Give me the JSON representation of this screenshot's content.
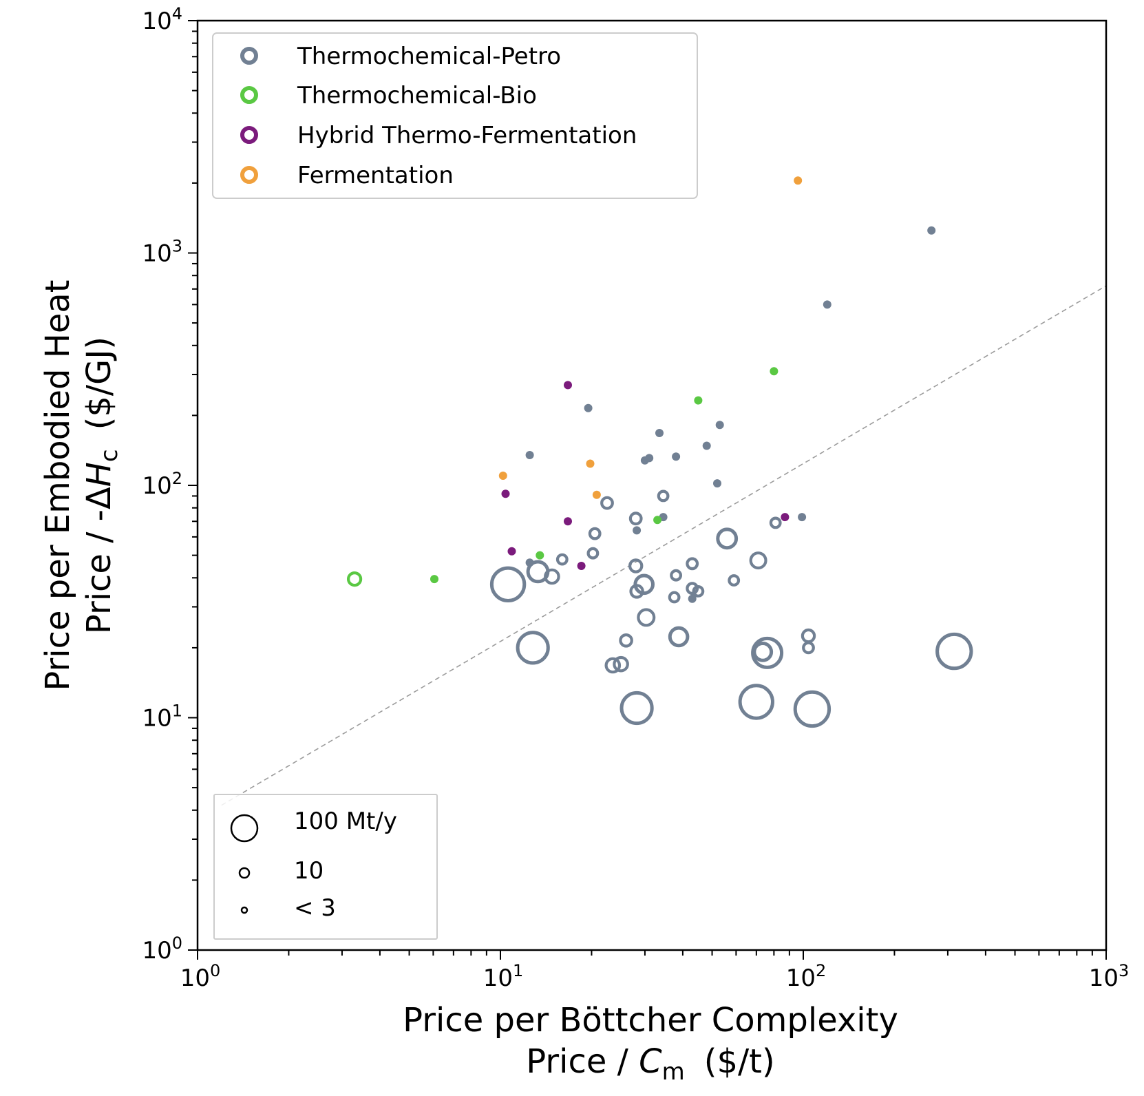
{
  "chart_data": {
    "type": "scatter",
    "xscale": "log",
    "yscale": "log",
    "xlim": [
      1,
      1000
    ],
    "ylim": [
      1,
      10000
    ],
    "grid": false,
    "x_ticks": [
      {
        "value": 1,
        "base": "10",
        "exp": "0"
      },
      {
        "value": 10,
        "base": "10",
        "exp": "1"
      },
      {
        "value": 100,
        "base": "10",
        "exp": "2"
      },
      {
        "value": 1000,
        "base": "10",
        "exp": "3"
      }
    ],
    "y_ticks": [
      {
        "value": 1,
        "base": "10",
        "exp": "0"
      },
      {
        "value": 10,
        "base": "10",
        "exp": "1"
      },
      {
        "value": 100,
        "base": "10",
        "exp": "2"
      },
      {
        "value": 1000,
        "base": "10",
        "exp": "3"
      },
      {
        "value": 10000,
        "base": "10",
        "exp": "4"
      }
    ],
    "xlabel": {
      "line1": "Price per Böttcher Complexity",
      "line2_prefix": "Price / ",
      "line2_symbol": "C",
      "line2_subscript": "m",
      "line2_unit": "($/t)"
    },
    "ylabel": {
      "line1": "Price per Embodied Heat",
      "line2_prefix": "Price / -Δ",
      "line2_symbol": "H",
      "line2_subscript": "c",
      "line2_unit": "($/GJ)"
    },
    "legend_placement": "upper-left",
    "size_legend_placement": "lower-left",
    "series": [
      {
        "name": "Thermochemical-Petro",
        "color": "#718093",
        "points": [
          {
            "x": 265,
            "y": 1250,
            "s": 2
          },
          {
            "x": 120,
            "y": 600,
            "s": 2
          },
          {
            "x": 19.5,
            "y": 215,
            "s": 2
          },
          {
            "x": 12.5,
            "y": 135,
            "s": 2
          },
          {
            "x": 33.5,
            "y": 168,
            "s": 2
          },
          {
            "x": 30,
            "y": 128,
            "s": 2
          },
          {
            "x": 31,
            "y": 131,
            "s": 2
          },
          {
            "x": 38,
            "y": 133,
            "s": 2
          },
          {
            "x": 48,
            "y": 148,
            "s": 2
          },
          {
            "x": 53,
            "y": 182,
            "s": 2
          },
          {
            "x": 52,
            "y": 102,
            "s": 2
          },
          {
            "x": 34.5,
            "y": 90,
            "s": 3
          },
          {
            "x": 22.5,
            "y": 84,
            "s": 5
          },
          {
            "x": 28,
            "y": 72,
            "s": 5
          },
          {
            "x": 28.2,
            "y": 64,
            "s": 2
          },
          {
            "x": 34.5,
            "y": 73,
            "s": 2
          },
          {
            "x": 20.5,
            "y": 62,
            "s": 4
          },
          {
            "x": 20.2,
            "y": 51,
            "s": 3
          },
          {
            "x": 16,
            "y": 48,
            "s": 3
          },
          {
            "x": 12.5,
            "y": 46.5,
            "s": 2
          },
          {
            "x": 81,
            "y": 69,
            "s": 3
          },
          {
            "x": 99,
            "y": 73,
            "s": 2
          },
          {
            "x": 56,
            "y": 59,
            "s": 25
          },
          {
            "x": 71,
            "y": 47.5,
            "s": 14
          },
          {
            "x": 28,
            "y": 45,
            "s": 7
          },
          {
            "x": 43,
            "y": 46,
            "s": 4
          },
          {
            "x": 38,
            "y": 41,
            "s": 3
          },
          {
            "x": 59,
            "y": 39,
            "s": 3
          },
          {
            "x": 13.3,
            "y": 42.5,
            "s": 30
          },
          {
            "x": 14.8,
            "y": 40.5,
            "s": 10
          },
          {
            "x": 10.6,
            "y": 37.5,
            "s": 100
          },
          {
            "x": 29.8,
            "y": 37.5,
            "s": 22
          },
          {
            "x": 28.2,
            "y": 35,
            "s": 7
          },
          {
            "x": 43,
            "y": 36,
            "s": 4
          },
          {
            "x": 45,
            "y": 35,
            "s": 3
          },
          {
            "x": 37.5,
            "y": 33,
            "s": 3
          },
          {
            "x": 43,
            "y": 32.5,
            "s": 2
          },
          {
            "x": 30.3,
            "y": 27,
            "s": 16
          },
          {
            "x": 38.8,
            "y": 22.3,
            "s": 22
          },
          {
            "x": 26,
            "y": 21.5,
            "s": 6
          },
          {
            "x": 104,
            "y": 22.5,
            "s": 7
          },
          {
            "x": 104,
            "y": 20,
            "s": 4
          },
          {
            "x": 12.8,
            "y": 20,
            "s": 85
          },
          {
            "x": 76,
            "y": 19,
            "s": 75
          },
          {
            "x": 73.5,
            "y": 19.2,
            "s": 20
          },
          {
            "x": 315,
            "y": 19.3,
            "s": 110
          },
          {
            "x": 23.5,
            "y": 16.8,
            "s": 10
          },
          {
            "x": 25,
            "y": 17,
            "s": 10
          },
          {
            "x": 28.2,
            "y": 11,
            "s": 85
          },
          {
            "x": 70,
            "y": 11.7,
            "s": 100
          },
          {
            "x": 107,
            "y": 10.9,
            "s": 110
          }
        ]
      },
      {
        "name": "Thermochemical-Bio",
        "color": "#5ac843",
        "points": [
          {
            "x": 3.3,
            "y": 39.5,
            "s": 8
          },
          {
            "x": 6.05,
            "y": 39.5,
            "s": 2
          },
          {
            "x": 13.5,
            "y": 50,
            "s": 2
          },
          {
            "x": 33,
            "y": 71,
            "s": 2
          },
          {
            "x": 45,
            "y": 232,
            "s": 2
          },
          {
            "x": 80,
            "y": 310,
            "s": 2
          }
        ]
      },
      {
        "name": "Hybrid Thermo-Fermentation",
        "color": "#7b1b7c",
        "points": [
          {
            "x": 16.7,
            "y": 270,
            "s": 2
          },
          {
            "x": 10.4,
            "y": 92,
            "s": 2
          },
          {
            "x": 16.7,
            "y": 70,
            "s": 2
          },
          {
            "x": 10.9,
            "y": 52,
            "s": 2
          },
          {
            "x": 18.5,
            "y": 45,
            "s": 2
          },
          {
            "x": 87,
            "y": 73,
            "s": 2
          }
        ]
      },
      {
        "name": "Fermentation",
        "color": "#f0a03c",
        "points": [
          {
            "x": 96,
            "y": 2050,
            "s": 2
          },
          {
            "x": 10.2,
            "y": 110,
            "s": 2
          },
          {
            "x": 19.8,
            "y": 124,
            "s": 2
          },
          {
            "x": 20.8,
            "y": 91,
            "s": 2
          }
        ]
      }
    ],
    "reference_line": {
      "x": [
        1.2,
        995
      ],
      "y": [
        4.2,
        720
      ],
      "color": "#9b9b9b",
      "style": "dashed"
    },
    "size_legend": [
      {
        "label": "100 Mt/y",
        "s": 100
      },
      {
        "label": "10",
        "s": 10
      },
      {
        "label": "< 3",
        "s": 3
      }
    ]
  }
}
